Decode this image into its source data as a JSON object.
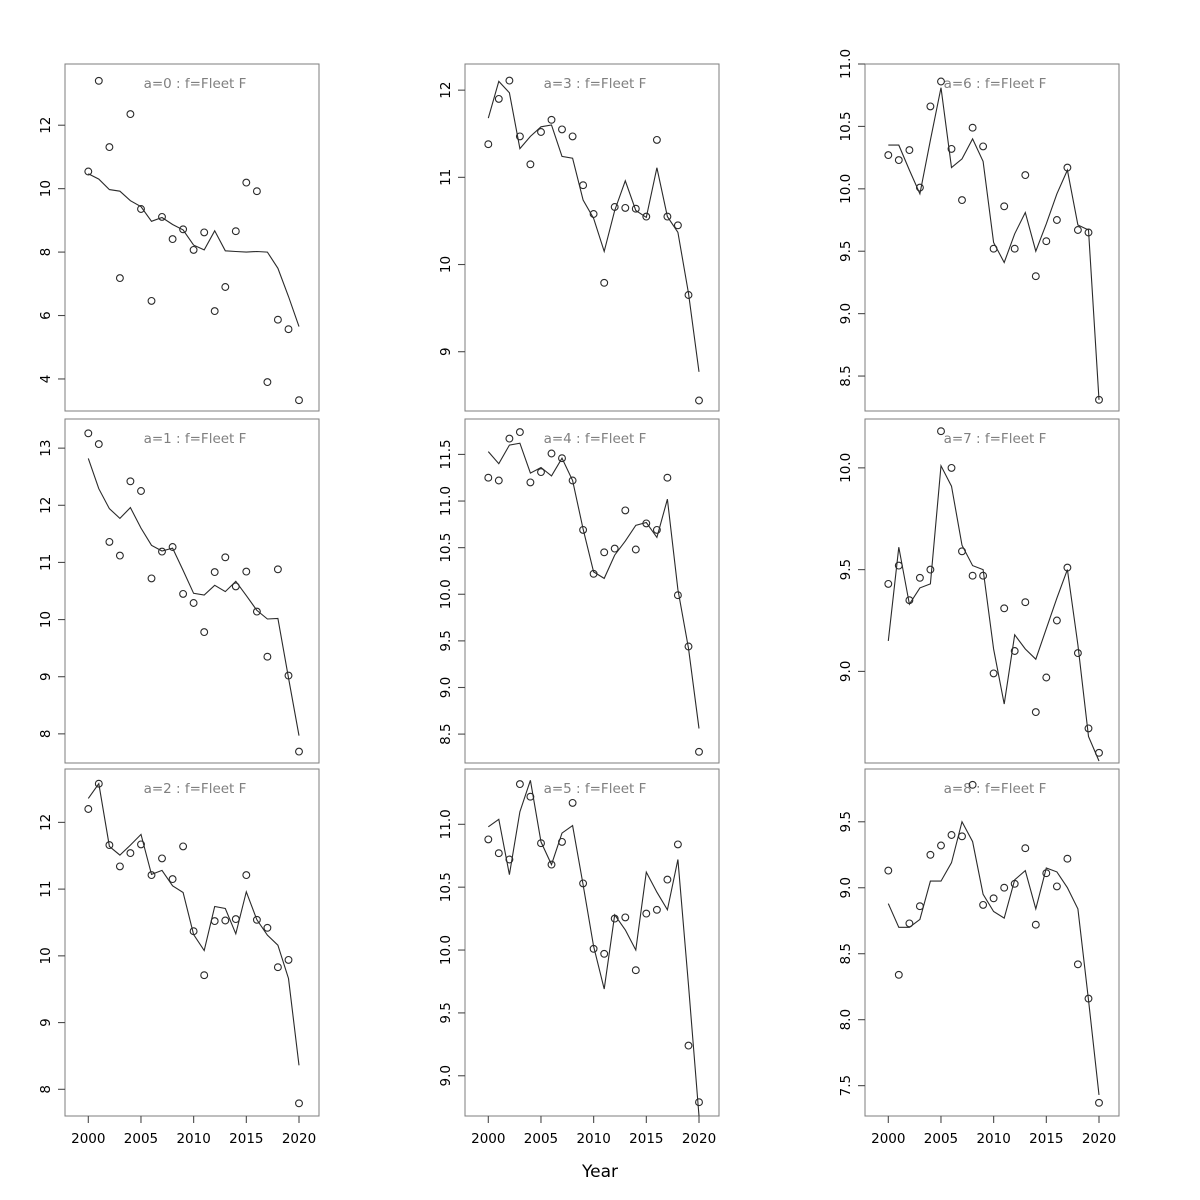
{
  "figure": {
    "xlabel": "Year",
    "background": "#ffffff",
    "colors": {
      "box": "#7d7d7d",
      "tick": "#4a4a4a",
      "tick_label": "#000000",
      "panel_title": "#7f7f7f",
      "series": "#2a2a2a"
    }
  },
  "chart_data": {
    "type": "scatter",
    "description": "3x3 grid of panels; open circles with a fitted line per panel",
    "x": [
      2000,
      2001,
      2002,
      2003,
      2004,
      2005,
      2006,
      2007,
      2008,
      2009,
      2010,
      2011,
      2012,
      2013,
      2014,
      2015,
      2016,
      2017,
      2018,
      2019,
      2020
    ],
    "xticks": {
      "values": [
        2000,
        2005,
        2010,
        2015,
        2020
      ],
      "labels": [
        "2000",
        "2005",
        "2010",
        "2015",
        "2020"
      ]
    },
    "xlabel": "Year",
    "legend": "none",
    "grid": "off",
    "panels": [
      {
        "title": "a=0 : f=Fleet F",
        "row": 0,
        "col": 0,
        "ylim": [
          2.99,
          13.93
        ],
        "yticks": {
          "values": [
            4,
            6,
            8,
            10,
            12
          ],
          "labels": [
            "4",
            "6",
            "8",
            "10",
            "12"
          ]
        },
        "points": [
          10.54,
          13.4,
          11.31,
          7.18,
          12.35,
          9.36,
          6.46,
          9.11,
          8.41,
          8.72,
          8.07,
          8.62,
          6.14,
          6.9,
          8.66,
          10.19,
          9.92,
          3.9,
          5.87,
          5.57,
          3.33
        ],
        "fitted": [
          10.47,
          10.3,
          9.97,
          9.92,
          9.62,
          9.43,
          8.97,
          9.09,
          8.87,
          8.7,
          8.22,
          8.07,
          8.67,
          8.04,
          8.02,
          8.0,
          8.02,
          8.0,
          7.49,
          6.6,
          5.65
        ]
      },
      {
        "title": "a=1 : f=Fleet F",
        "row": 1,
        "col": 0,
        "ylim": [
          7.49,
          13.51
        ],
        "yticks": {
          "values": [
            8,
            9,
            10,
            11,
            12,
            13
          ],
          "labels": [
            "8",
            "9",
            "10",
            "11",
            "12",
            "13"
          ]
        },
        "points": [
          13.26,
          13.07,
          11.36,
          11.12,
          12.42,
          12.25,
          10.72,
          11.19,
          11.27,
          10.45,
          10.29,
          9.78,
          10.83,
          11.09,
          10.58,
          10.84,
          10.14,
          9.35,
          10.88,
          9.02,
          7.69
        ],
        "fitted": [
          12.82,
          12.29,
          11.94,
          11.77,
          11.96,
          11.6,
          11.3,
          11.2,
          11.25,
          10.86,
          10.46,
          10.43,
          10.6,
          10.49,
          10.67,
          10.42,
          10.16,
          10.01,
          10.02,
          8.98,
          7.97
        ]
      },
      {
        "title": "a=2 : f=Fleet F",
        "row": 2,
        "col": 0,
        "ylim": [
          7.6,
          12.8
        ],
        "yticks": {
          "values": [
            8,
            9,
            10,
            11,
            12
          ],
          "labels": [
            "8",
            "9",
            "10",
            "11",
            "12"
          ]
        },
        "points": [
          12.2,
          12.58,
          11.66,
          11.34,
          11.54,
          11.67,
          11.21,
          11.46,
          11.15,
          11.64,
          10.37,
          9.71,
          10.52,
          10.53,
          10.55,
          11.21,
          10.54,
          10.42,
          9.83,
          9.94,
          7.79
        ],
        "fitted": [
          12.36,
          12.58,
          11.64,
          11.51,
          11.66,
          11.82,
          11.22,
          11.28,
          11.05,
          10.95,
          10.32,
          10.08,
          10.74,
          10.71,
          10.33,
          10.96,
          10.54,
          10.31,
          10.16,
          9.66,
          8.36
        ]
      },
      {
        "title": "a=3 : f=Fleet F",
        "row": 0,
        "col": 1,
        "ylim": [
          8.32,
          12.3
        ],
        "yticks": {
          "values": [
            9,
            10,
            11,
            12
          ],
          "labels": [
            "9",
            "10",
            "11",
            "12"
          ]
        },
        "points": [
          11.38,
          11.9,
          12.11,
          11.47,
          11.15,
          11.52,
          11.66,
          11.55,
          11.47,
          10.91,
          10.58,
          9.79,
          10.66,
          10.65,
          10.64,
          10.55,
          11.43,
          10.55,
          10.45,
          9.65,
          8.44
        ],
        "fitted": [
          11.68,
          12.1,
          11.97,
          11.33,
          11.47,
          11.58,
          11.6,
          11.24,
          11.22,
          10.74,
          10.53,
          10.15,
          10.62,
          10.96,
          10.62,
          10.54,
          11.11,
          10.55,
          10.37,
          9.67,
          8.77
        ]
      },
      {
        "title": "a=4 : f=Fleet F",
        "row": 1,
        "col": 1,
        "ylim": [
          8.19,
          11.88
        ],
        "yticks": {
          "values": [
            8.5,
            9.0,
            9.5,
            10.0,
            10.5,
            11.0,
            11.5
          ],
          "labels": [
            "8.5",
            "9.0",
            "9.5",
            "10.0",
            "10.5",
            "11.0",
            "11.5"
          ]
        },
        "points": [
          11.25,
          11.22,
          11.67,
          11.74,
          11.2,
          11.31,
          11.51,
          11.46,
          11.22,
          10.69,
          10.22,
          10.45,
          10.49,
          10.9,
          10.48,
          10.76,
          10.69,
          11.25,
          9.99,
          9.44,
          8.31
        ],
        "fitted": [
          11.53,
          11.4,
          11.6,
          11.62,
          11.3,
          11.36,
          11.27,
          11.46,
          11.22,
          10.7,
          10.24,
          10.17,
          10.42,
          10.57,
          10.74,
          10.77,
          10.61,
          11.02,
          10.05,
          9.42,
          8.56
        ]
      },
      {
        "title": "a=5 : f=Fleet F",
        "row": 2,
        "col": 1,
        "ylim": [
          8.68,
          11.44
        ],
        "yticks": {
          "values": [
            9.0,
            9.5,
            10.0,
            10.5,
            11.0
          ],
          "labels": [
            "9.0",
            "9.5",
            "10.0",
            "10.5",
            "11.0"
          ]
        },
        "points": [
          10.88,
          10.77,
          10.72,
          11.32,
          11.22,
          10.85,
          10.68,
          10.86,
          11.17,
          10.53,
          10.01,
          9.97,
          10.25,
          10.26,
          9.84,
          10.29,
          10.32,
          10.56,
          10.84,
          9.24,
          8.79
        ],
        "fitted": [
          10.98,
          11.04,
          10.6,
          11.1,
          11.35,
          10.86,
          10.68,
          10.93,
          10.99,
          10.52,
          10.03,
          9.69,
          10.28,
          10.16,
          10.0,
          10.62,
          10.46,
          10.32,
          10.72,
          9.72,
          8.68
        ]
      },
      {
        "title": "a=6 : f=Fleet F",
        "row": 0,
        "col": 2,
        "ylim": [
          8.22,
          11.0
        ],
        "yticks": {
          "values": [
            8.5,
            9.0,
            9.5,
            10.0,
            10.5,
            11.0
          ],
          "labels": [
            "8.5",
            "9.0",
            "9.5",
            "10.0",
            "10.5",
            "11.0"
          ]
        },
        "points": [
          10.27,
          10.23,
          10.31,
          10.01,
          10.66,
          10.86,
          10.32,
          9.91,
          10.49,
          10.34,
          9.52,
          9.86,
          9.52,
          10.11,
          9.3,
          9.58,
          9.75,
          10.17,
          9.67,
          9.65,
          8.31
        ],
        "fitted": [
          10.35,
          10.35,
          10.15,
          9.96,
          10.39,
          10.81,
          10.17,
          10.24,
          10.4,
          10.22,
          9.57,
          9.41,
          9.64,
          9.81,
          9.5,
          9.72,
          9.96,
          10.15,
          9.71,
          9.67,
          8.31
        ]
      },
      {
        "title": "a=7 : f=Fleet F",
        "row": 1,
        "col": 2,
        "ylim": [
          8.55,
          10.24
        ],
        "yticks": {
          "values": [
            9.0,
            9.5,
            10.0
          ],
          "labels": [
            "9.0",
            "9.5",
            "10.0"
          ]
        },
        "points": [
          9.43,
          9.52,
          9.35,
          9.46,
          9.5,
          10.18,
          10.0,
          9.59,
          9.47,
          9.47,
          8.99,
          9.31,
          9.1,
          9.34,
          8.8,
          8.97,
          9.25,
          9.51,
          9.09,
          8.72,
          8.6
        ],
        "fitted": [
          9.15,
          9.61,
          9.33,
          9.41,
          9.43,
          10.01,
          9.91,
          9.62,
          9.52,
          9.5,
          9.11,
          8.84,
          9.18,
          9.11,
          9.06,
          9.21,
          9.36,
          9.5,
          9.13,
          8.68,
          8.56
        ]
      },
      {
        "title": "a=8 : f=Fleet F",
        "row": 2,
        "col": 2,
        "ylim": [
          7.27,
          9.9
        ],
        "yticks": {
          "values": [
            7.5,
            8.0,
            8.5,
            9.0,
            9.5
          ],
          "labels": [
            "7.5",
            "8.0",
            "8.5",
            "9.0",
            "9.5"
          ]
        },
        "points": [
          9.13,
          8.34,
          8.73,
          8.86,
          9.25,
          9.32,
          9.4,
          9.39,
          9.78,
          8.87,
          8.92,
          9.0,
          9.03,
          9.3,
          8.72,
          9.11,
          9.01,
          9.22,
          8.42,
          8.16,
          7.37
        ],
        "fitted": [
          8.88,
          8.7,
          8.7,
          8.76,
          9.05,
          9.05,
          9.19,
          9.5,
          9.35,
          8.95,
          8.82,
          8.77,
          9.06,
          9.13,
          8.84,
          9.15,
          9.12,
          9.0,
          8.84,
          8.15,
          7.43
        ]
      }
    ]
  }
}
